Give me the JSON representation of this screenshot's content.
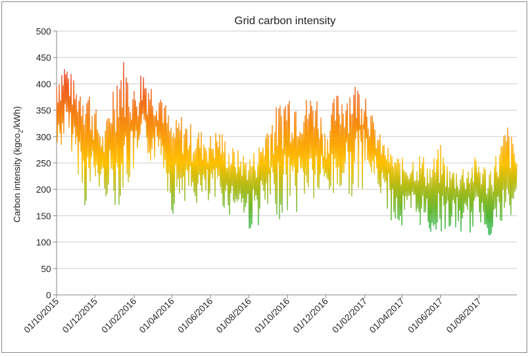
{
  "chart_data": {
    "type": "line",
    "title": "Grid carbon intensity",
    "ylabel_parts": [
      "Carbon intensity (kgco",
      "2",
      "/kWh)"
    ],
    "xlabel": "",
    "ylim": [
      0,
      500
    ],
    "yticks": [
      0,
      50,
      100,
      150,
      200,
      250,
      300,
      350,
      400,
      450,
      500
    ],
    "xlim": [
      "2015-10-01",
      "2017-09-30"
    ],
    "xticks": [
      "01/10/2015",
      "01/12/2015",
      "01/02/2016",
      "01/04/2016",
      "01/06/2016",
      "01/08/2016",
      "01/10/2016",
      "01/12/2016",
      "01/02/2017",
      "01/04/2017",
      "01/06/2017",
      "01/08/2017"
    ],
    "grid": true,
    "color_scale": {
      "low": "#00b050",
      "mid": "#ffc000",
      "high": "#e8332b"
    },
    "series": [
      {
        "name": "",
        "x": [
          "2015-10-01",
          "2015-10-15",
          "2015-11-01",
          "2015-11-15",
          "2015-12-01",
          "2015-12-15",
          "2016-01-01",
          "2016-01-15",
          "2016-02-01",
          "2016-02-15",
          "2016-03-01",
          "2016-03-15",
          "2016-04-01",
          "2016-04-15",
          "2016-05-01",
          "2016-05-15",
          "2016-06-01",
          "2016-06-15",
          "2016-07-01",
          "2016-07-15",
          "2016-08-01",
          "2016-08-15",
          "2016-09-01",
          "2016-09-15",
          "2016-10-01",
          "2016-10-15",
          "2016-11-01",
          "2016-11-15",
          "2016-12-01",
          "2016-12-15",
          "2017-01-01",
          "2017-01-15",
          "2017-02-01",
          "2017-02-15",
          "2017-03-01",
          "2017-03-15",
          "2017-04-01",
          "2017-04-15",
          "2017-05-01",
          "2017-05-15",
          "2017-06-01",
          "2017-06-15",
          "2017-07-01",
          "2017-07-15",
          "2017-08-01",
          "2017-08-15",
          "2017-09-01",
          "2017-09-15",
          "2017-09-30"
        ],
        "low": [
          250,
          300,
          250,
          160,
          200,
          190,
          165,
          175,
          230,
          250,
          250,
          260,
          150,
          180,
          175,
          165,
          160,
          175,
          150,
          165,
          120,
          130,
          145,
          140,
          155,
          150,
          180,
          165,
          195,
          170,
          200,
          175,
          210,
          215,
          180,
          140,
          115,
          130,
          130,
          110,
          120,
          120,
          115,
          110,
          140,
          110,
          115,
          125,
          150
        ],
        "high": [
          430,
          450,
          395,
          420,
          360,
          300,
          430,
          450,
          395,
          440,
          400,
          395,
          320,
          345,
          325,
          315,
          305,
          320,
          285,
          275,
          265,
          280,
          345,
          360,
          395,
          385,
          375,
          390,
          310,
          380,
          395,
          405,
          400,
          330,
          295,
          270,
          260,
          265,
          270,
          250,
          285,
          240,
          245,
          255,
          265,
          240,
          280,
          330,
          270
        ],
        "mean": [
          340,
          370,
          330,
          300,
          280,
          250,
          300,
          330,
          310,
          345,
          330,
          320,
          255,
          260,
          245,
          245,
          240,
          245,
          220,
          215,
          205,
          215,
          240,
          250,
          285,
          280,
          290,
          300,
          250,
          290,
          300,
          310,
          320,
          270,
          245,
          225,
          200,
          205,
          205,
          190,
          195,
          190,
          185,
          185,
          195,
          175,
          205,
          225,
          215
        ]
      }
    ]
  }
}
